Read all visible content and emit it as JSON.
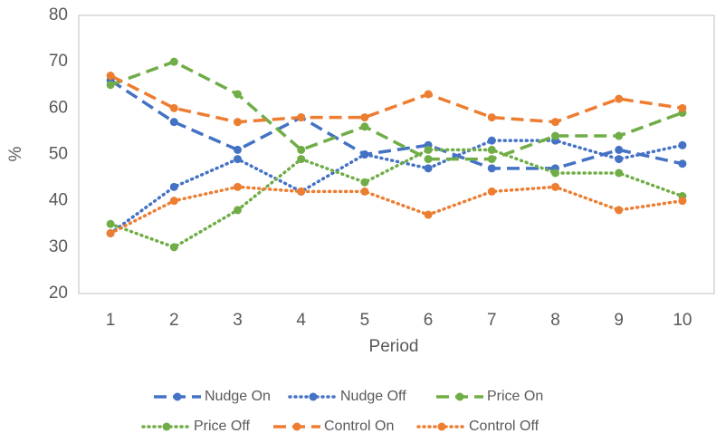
{
  "chart_data": {
    "type": "line",
    "x_label": "Period",
    "y_label": "%",
    "categories": [
      "1",
      "2",
      "3",
      "4",
      "5",
      "6",
      "7",
      "8",
      "9",
      "10"
    ],
    "ylim": [
      20,
      80
    ],
    "yticks": [
      20,
      30,
      40,
      50,
      60,
      70,
      80
    ],
    "grid": false,
    "legend": "bottom",
    "series": [
      {
        "name": "Nudge On",
        "color": "#4472c4",
        "line_style": "dash",
        "values": [
          66,
          57,
          51,
          58,
          50,
          52,
          47,
          47,
          51,
          48
        ]
      },
      {
        "name": "Nudge Off",
        "color": "#4472c4",
        "line_style": "dot",
        "values": [
          33,
          43,
          49,
          42,
          50,
          47,
          53,
          53,
          49,
          52
        ]
      },
      {
        "name": "Price On",
        "color": "#70ad47",
        "line_style": "dash",
        "values": [
          65,
          70,
          63,
          51,
          56,
          49,
          49,
          54,
          54,
          59
        ]
      },
      {
        "name": "Price Off",
        "color": "#70ad47",
        "line_style": "dot",
        "values": [
          35,
          30,
          38,
          49,
          44,
          51,
          51,
          46,
          46,
          41
        ]
      },
      {
        "name": "Control On",
        "color": "#ed7d31",
        "line_style": "dash",
        "values": [
          67,
          60,
          57,
          58,
          58,
          63,
          58,
          57,
          62,
          60
        ]
      },
      {
        "name": "Control Off",
        "color": "#ed7d31",
        "line_style": "dot",
        "values": [
          33,
          40,
          43,
          42,
          42,
          37,
          42,
          43,
          38,
          40
        ]
      }
    ]
  }
}
